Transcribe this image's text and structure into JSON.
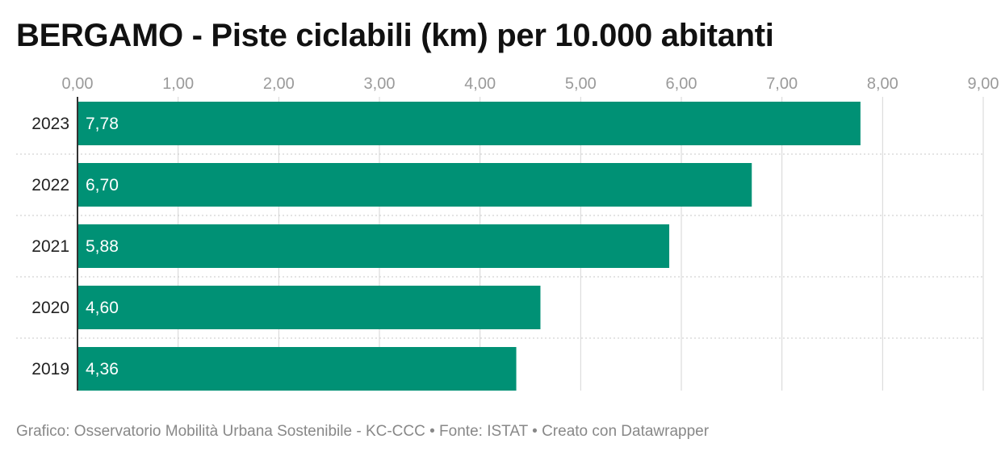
{
  "header": {
    "title": "BERGAMO - Piste ciclabili (km) per 10.000 abitanti"
  },
  "footer": {
    "text": "Grafico: Osservatorio Mobilità Urbana Sostenibile - KC-CCC • Fonte: ISTAT • Creato con Datawrapper"
  },
  "colors": {
    "bar": "#009175",
    "grid": "#d6d6d6",
    "axis": "#333333"
  },
  "chart_data": {
    "type": "bar",
    "orientation": "horizontal",
    "title": "BERGAMO - Piste ciclabili (km) per 10.000 abitanti",
    "categories": [
      "2023",
      "2022",
      "2021",
      "2020",
      "2019"
    ],
    "values": [
      7.78,
      6.7,
      5.88,
      4.6,
      4.36
    ],
    "value_labels": [
      "7,78",
      "6,70",
      "5,88",
      "4,60",
      "4,36"
    ],
    "xlim": [
      0,
      9
    ],
    "x_ticks": [
      0,
      1,
      2,
      3,
      4,
      5,
      6,
      7,
      8,
      9
    ],
    "x_tick_labels": [
      "0,00",
      "1,00",
      "2,00",
      "3,00",
      "4,00",
      "5,00",
      "6,00",
      "7,00",
      "8,00",
      "9,00"
    ],
    "grid": true,
    "axis_position": "top"
  }
}
